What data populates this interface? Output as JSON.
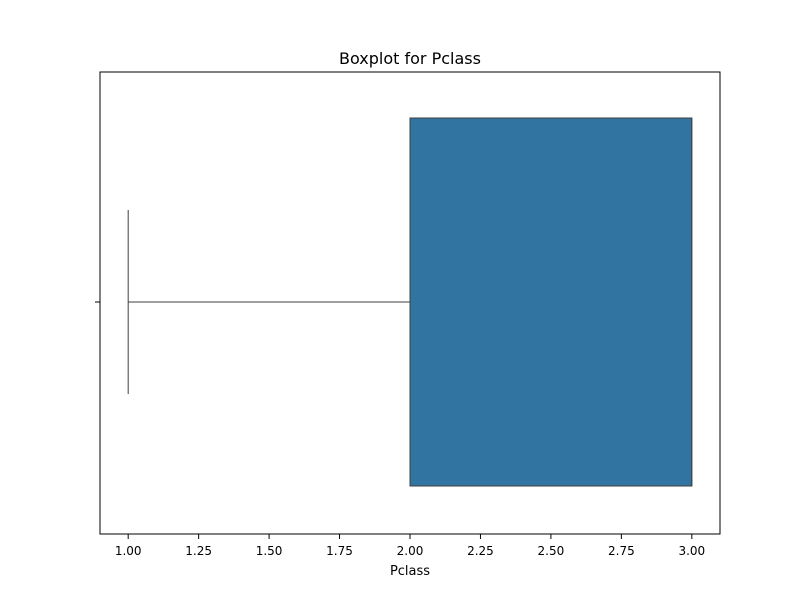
{
  "chart_data": {
    "type": "boxplot",
    "title": "Boxplot for Pclass",
    "xlabel": "Pclass",
    "ylabel": "",
    "orientation": "horizontal",
    "xlim": [
      0.9,
      3.1
    ],
    "x_ticks": [
      1.0,
      1.25,
      1.5,
      1.75,
      2.0,
      2.25,
      2.5,
      2.75,
      3.0
    ],
    "x_tick_labels": [
      "1.00",
      "1.25",
      "1.50",
      "1.75",
      "2.00",
      "2.25",
      "2.50",
      "2.75",
      "3.00"
    ],
    "box": {
      "whisker_low": 1.0,
      "q1": 2.0,
      "median": 3.0,
      "q3": 3.0,
      "whisker_high": 3.0,
      "outliers": []
    },
    "grid": false,
    "colors": {
      "box_fill": "#3274a1",
      "line": "#3f3f3f"
    }
  }
}
